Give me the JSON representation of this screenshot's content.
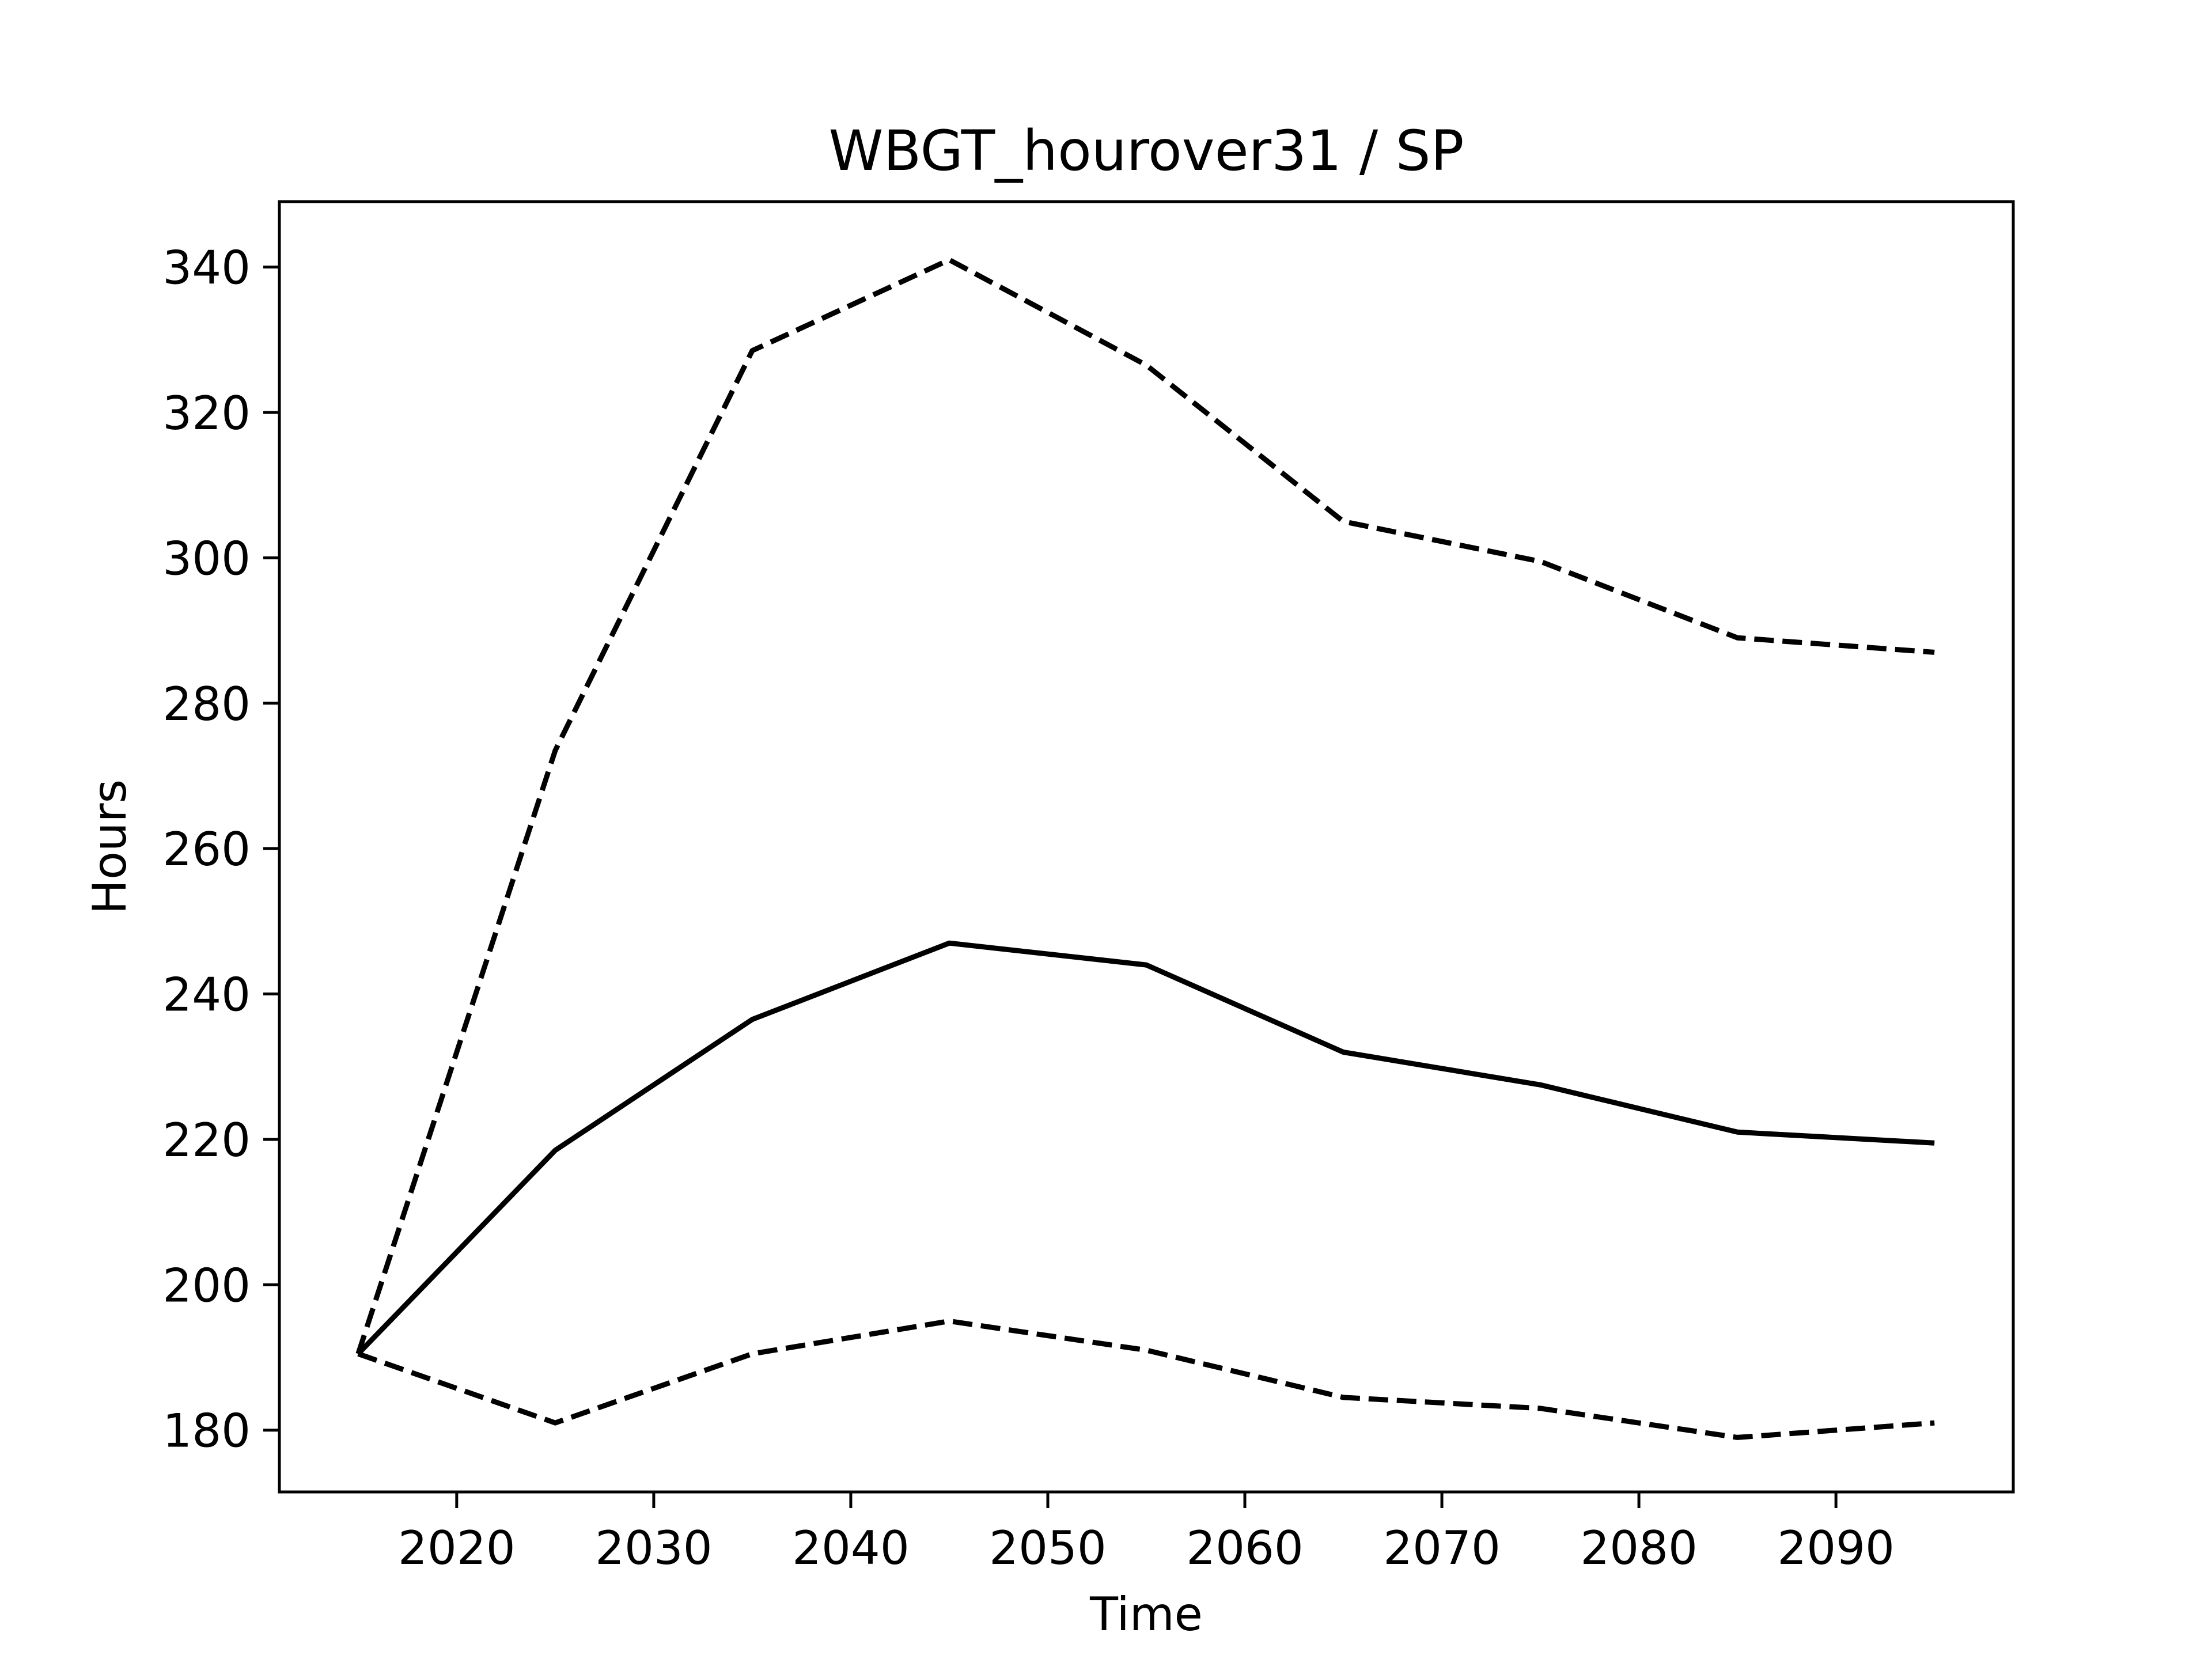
{
  "chart_data": {
    "type": "line",
    "title": "WBGT_hourover31 / SP",
    "xlabel": "Time",
    "ylabel": "Hours",
    "xlim": [
      2011,
      2099
    ],
    "ylim": [
      171.5,
      349
    ],
    "x_ticks": [
      2020,
      2030,
      2040,
      2050,
      2060,
      2070,
      2080,
      2090
    ],
    "y_ticks": [
      180,
      200,
      220,
      240,
      260,
      280,
      300,
      320,
      340
    ],
    "grid": false,
    "line_color": "#000000",
    "series": [
      {
        "style": "solid",
        "x": [
          2015,
          2025,
          2035,
          2045,
          2055,
          2065,
          2075,
          2085,
          2095
        ],
        "y": [
          190.5,
          218.5,
          236.5,
          247.0,
          244.0,
          232.0,
          227.5,
          221.0,
          219.5
        ]
      },
      {
        "style": "dashed",
        "x": [
          2015,
          2025,
          2035,
          2045,
          2055,
          2065,
          2075,
          2085,
          2095
        ],
        "y": [
          190.5,
          273.5,
          328.5,
          341.0,
          326.5,
          305.0,
          299.5,
          289.0,
          287.0
        ]
      },
      {
        "style": "dashed",
        "x": [
          2015,
          2025,
          2035,
          2045,
          2055,
          2065,
          2075,
          2085,
          2095
        ],
        "y": [
          190.5,
          181.0,
          190.5,
          195.0,
          191.0,
          184.5,
          183.0,
          179.0,
          181.0
        ]
      }
    ]
  }
}
